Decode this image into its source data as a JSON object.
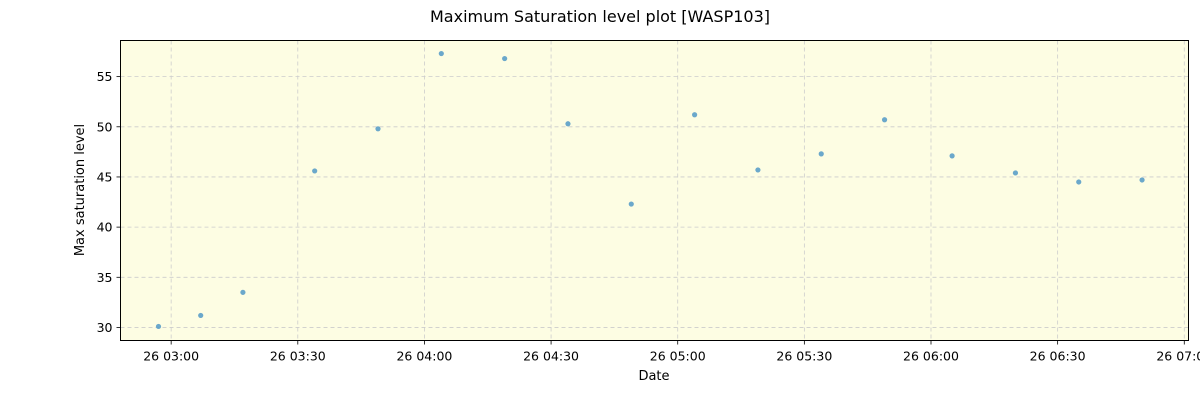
{
  "chart_data": {
    "type": "scatter",
    "title": "Maximum Saturation level plot [WASP103]",
    "xlabel": "Date",
    "ylabel": "Max saturation level",
    "x_tick_labels": [
      "26 03:00",
      "26 03:30",
      "26 04:00",
      "26 04:30",
      "26 05:00",
      "26 05:30",
      "26 06:00",
      "26 06:30",
      "26 07:00"
    ],
    "y_tick_labels": [
      "30",
      "35",
      "40",
      "45",
      "50",
      "55"
    ],
    "x_tick_values": [
      "03:00",
      "03:30",
      "04:00",
      "04:30",
      "05:00",
      "05:30",
      "06:00",
      "06:30",
      "07:00"
    ],
    "y_ticks": [
      30,
      35,
      40,
      45,
      50,
      55
    ],
    "xlim": [
      "02:48",
      "07:01"
    ],
    "ylim": [
      28.7,
      58.6
    ],
    "grid": true,
    "series": [
      {
        "x": [
          "02:57",
          "03:07",
          "03:17",
          "03:34",
          "03:49",
          "04:04",
          "04:19",
          "04:34",
          "04:49",
          "05:04",
          "05:19",
          "05:34",
          "05:49",
          "06:05",
          "06:20",
          "06:35",
          "06:50"
        ],
        "y": [
          30.1,
          31.2,
          33.5,
          45.6,
          49.8,
          57.3,
          56.8,
          50.3,
          42.3,
          51.2,
          45.7,
          47.3,
          50.7,
          47.1,
          45.4,
          44.5,
          44.7
        ]
      }
    ],
    "colors": {
      "plot_background": "#fdfde3",
      "marker": "#5b9fc8",
      "grid": "#cccccc"
    }
  }
}
